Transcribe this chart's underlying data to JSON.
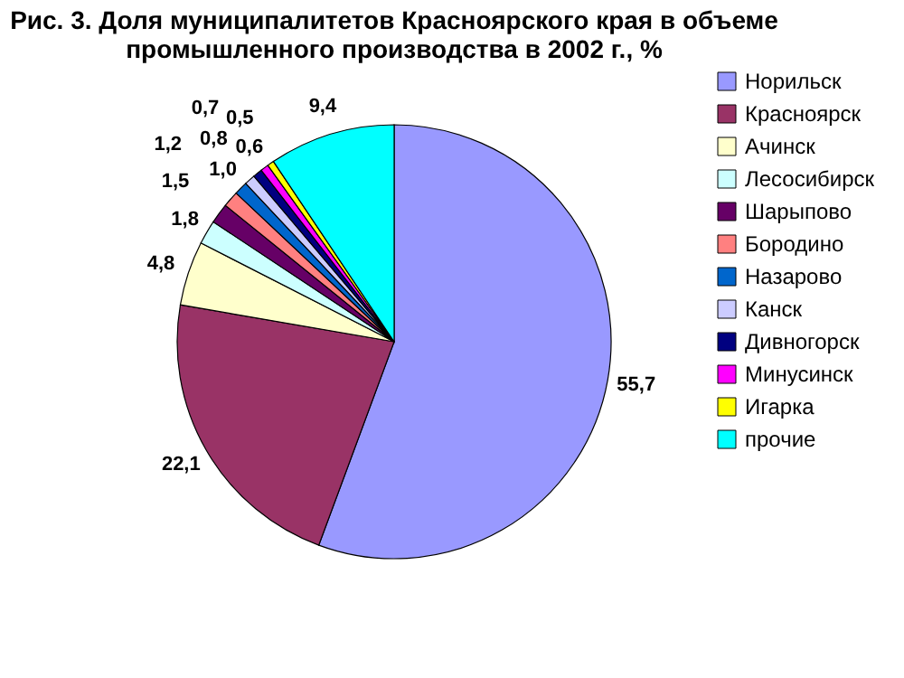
{
  "chart_data": {
    "type": "pie",
    "title": [
      "Рис. 3. Доля муниципалитетов Красноярского края в объеме",
      "промышленного производства в 2002 г., %"
    ],
    "categories": [
      "Норильск",
      "Красноярск",
      "Ачинск",
      "Лесосибирск",
      "Шарыпово",
      "Бородино",
      "Назарово",
      "Канск",
      "Дивногорск",
      "Минусинск",
      "Игарка",
      "прочие"
    ],
    "values": [
      55.7,
      22.1,
      4.8,
      1.8,
      1.5,
      1.2,
      1.0,
      0.8,
      0.7,
      0.6,
      0.5,
      9.4
    ],
    "colors": [
      "#9999ff",
      "#993366",
      "#ffffcc",
      "#ccffff",
      "#660066",
      "#ff8080",
      "#0066cc",
      "#ccccff",
      "#000080",
      "#ff00ff",
      "#ffff00",
      "#00ffff"
    ],
    "value_labels": [
      "55,7",
      "22,1",
      "4,8",
      "1,8",
      "1,5",
      "1,2",
      "1,0",
      "0,8",
      "0,7",
      "0,6",
      "0,5",
      "9,4"
    ],
    "legend": "right"
  }
}
